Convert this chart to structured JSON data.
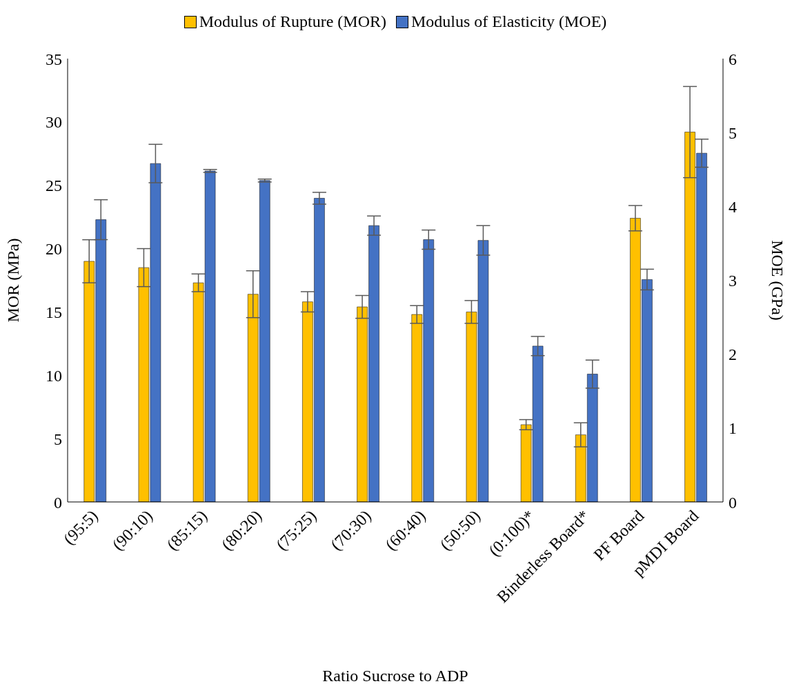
{
  "chart_data": {
    "type": "bar",
    "xlabel": "Ratio Sucrose to ADP",
    "ylabel": "MOR (MPa)",
    "y2label": "MOE (GPa)",
    "categories": [
      "(95:5)",
      "(90:10)",
      "(85:15)",
      "(80:20)",
      "(75:25)",
      "(70:30)",
      "(60:40)",
      "(50:50)",
      "(0:100)*",
      "Binderless Board*",
      "PF Board",
      "pMDI Board"
    ],
    "series": [
      {
        "name": "Modulus of Rupture (MOR)",
        "color": "#ffc000",
        "values": [
          19.0,
          18.5,
          17.3,
          16.4,
          15.8,
          15.4,
          14.8,
          15.0,
          6.1,
          5.3,
          22.4,
          29.2
        ],
        "errors": [
          1.7,
          1.5,
          0.7,
          1.85,
          0.8,
          0.9,
          0.7,
          0.9,
          0.4,
          0.95,
          1.0,
          3.6
        ]
      },
      {
        "name": "Modulus of Elasticity (MOE)",
        "color": "#4472c4",
        "axis": "y2",
        "values": [
          3.82,
          4.58,
          4.48,
          4.35,
          4.11,
          3.74,
          3.55,
          3.54,
          2.11,
          1.73,
          3.01,
          4.72
        ],
        "errors": [
          0.27,
          0.26,
          0.02,
          0.02,
          0.08,
          0.13,
          0.13,
          0.2,
          0.13,
          0.19,
          0.14,
          0.19
        ]
      }
    ],
    "ylim": [
      0,
      35
    ],
    "yticks": [
      0,
      5,
      10,
      15,
      20,
      25,
      30,
      35
    ],
    "y2lim": [
      0,
      6
    ],
    "y2ticks": [
      0,
      1,
      2,
      3,
      4,
      5,
      6
    ],
    "legend": "top"
  }
}
